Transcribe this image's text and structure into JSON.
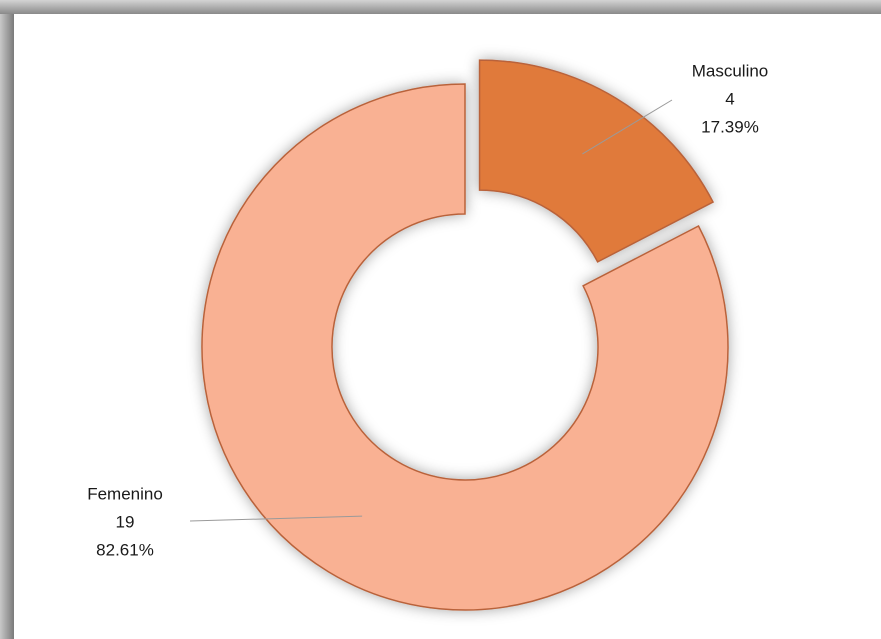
{
  "chart_data": {
    "type": "donut",
    "categories": [
      "Masculino",
      "Femenino"
    ],
    "values": [
      4,
      19
    ],
    "shares": [
      17.39,
      82.61
    ],
    "share_labels": [
      "17.39%",
      "82.61%"
    ],
    "colors": [
      "#e07a3a",
      "#f9b193"
    ],
    "exploded": [
      true,
      false
    ]
  }
}
